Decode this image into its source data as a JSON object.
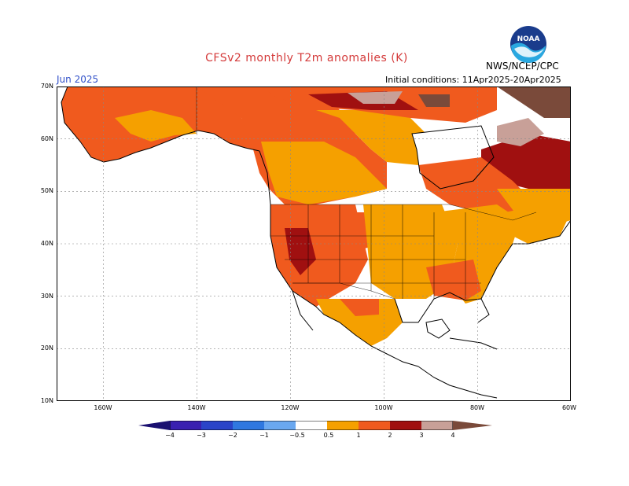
{
  "title": "CFSv2 monthly T2m anomalies (K)",
  "month": "Jun 2025",
  "initial_conditions": "Initial conditions: 11Apr2025-20Apr2025",
  "agency": "NWS/NCEP/CPC",
  "logo_text": "NOAA",
  "colors": {
    "title": "#d43a3a",
    "month": "#3050c8",
    "anom_0_5_1": "#f5a000",
    "anom_1_2": "#f05a1e",
    "anom_2_3": "#a01010",
    "anom_3_4": "#c8a098",
    "anom_gt4": "#7a4a3a",
    "neg_4": "#3a20b0",
    "neg_3": "#2a44c8",
    "neg_2": "#2f78e0",
    "neg_1": "#6aa8f0",
    "neg_0_5": "#9ccaf8"
  },
  "lat_labels": [
    "70N",
    "60N",
    "50N",
    "40N",
    "30N",
    "20N",
    "10N"
  ],
  "lon_labels": [
    "160W",
    "140W",
    "120W",
    "100W",
    "80W",
    "60W"
  ],
  "colorbar_labels": [
    "−4",
    "−3",
    "−2",
    "−1",
    "−0.5",
    "0.5",
    "1",
    "2",
    "3",
    "4"
  ]
}
